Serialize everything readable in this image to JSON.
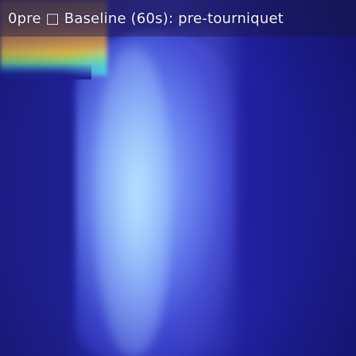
{
  "title": "0pre □ Baseline (60s): pre-tourniquet",
  "thermal_image": {
    "palette": "thermal",
    "colors": {
      "background": "#1b1a86",
      "beam": "#a8d4ff",
      "hot_corner": "#e0c04a"
    }
  }
}
